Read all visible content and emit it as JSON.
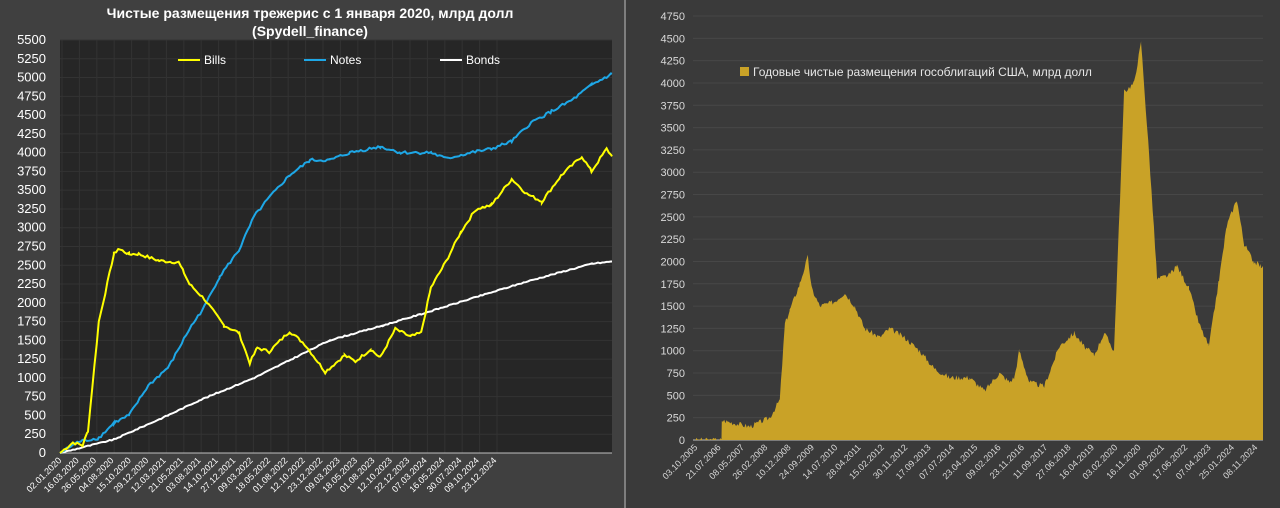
{
  "chart_data": [
    {
      "type": "line",
      "title": "Чистые размещения трежерис с 1 января 2020, млрд долл",
      "subtitle": "(Spydell_finance)",
      "xlabel": "",
      "ylabel": "",
      "ylim": [
        0,
        5500
      ],
      "yticks": [
        0,
        250,
        500,
        750,
        1000,
        1250,
        1500,
        1750,
        2000,
        2250,
        2500,
        2750,
        3000,
        3250,
        3500,
        3750,
        4000,
        4250,
        4500,
        4750,
        5000,
        5250,
        5500
      ],
      "xlim": [
        2020.0,
        2025.12
      ],
      "xtick_labels": [
        "02.01.2020",
        "16.03.2020",
        "26.05.2020",
        "04.08.2020",
        "15.10.2020",
        "29.12.2020",
        "12.03.2021",
        "21.05.2021",
        "03.08.2021",
        "14.10.2021",
        "27.12.2021",
        "09.03.2022",
        "18.05.2022",
        "01.08.2022",
        "12.10.2022",
        "23.12.2022",
        "09.03.2023",
        "18.05.2023",
        "01.08.2023",
        "12.10.2023",
        "22.12.2023",
        "07.03.2024",
        "16.05.2024",
        "30.07.2024",
        "09.10.2024",
        "23.12.2024"
      ],
      "legend_position": "top",
      "grid": true,
      "series": [
        {
          "name": "Bills",
          "color": "#ffff00",
          "x": [
            2020.0,
            2020.12,
            2020.21,
            2020.26,
            2020.36,
            2020.5,
            2020.54,
            2020.64,
            2020.73,
            2020.92,
            2021.1,
            2021.15,
            2021.2,
            2021.34,
            2021.52,
            2021.66,
            2021.76,
            2021.83,
            2021.94,
            2022.13,
            2022.27,
            2022.46,
            2022.64,
            2022.74,
            2022.88,
            2022.97,
            2023.11,
            2023.25,
            2023.35,
            2023.44,
            2023.58,
            2023.72,
            2023.86,
            2024.0,
            2024.19,
            2024.33,
            2024.47,
            2024.65,
            2024.84,
            2024.93,
            2025.07,
            2025.12
          ],
          "y": [
            0,
            140,
            100,
            300,
            1750,
            2650,
            2720,
            2650,
            2650,
            2560,
            2540,
            2400,
            2250,
            2050,
            1700,
            1600,
            1200,
            1400,
            1350,
            1620,
            1450,
            1080,
            1300,
            1220,
            1380,
            1270,
            1650,
            1550,
            1600,
            2200,
            2550,
            2950,
            3250,
            3300,
            3650,
            3450,
            3350,
            3700,
            3950,
            3750,
            4050,
            3950
          ]
        },
        {
          "name": "Notes",
          "color": "#1ea7e6",
          "x": [
            2020.0,
            2020.17,
            2020.36,
            2020.5,
            2020.64,
            2020.82,
            2021.01,
            2021.2,
            2021.34,
            2021.48,
            2021.66,
            2021.8,
            2021.94,
            2022.13,
            2022.32,
            2022.5,
            2022.69,
            2022.97,
            2023.16,
            2023.44,
            2023.58,
            2023.81,
            2024.0,
            2024.19,
            2024.37,
            2024.56,
            2024.75,
            2024.93,
            2025.12
          ],
          "y": [
            0,
            150,
            200,
            400,
            500,
            900,
            1150,
            1650,
            1950,
            2350,
            2700,
            3150,
            3400,
            3700,
            3900,
            3900,
            4000,
            4080,
            4000,
            4000,
            3920,
            4000,
            4050,
            4150,
            4400,
            4550,
            4700,
            4900,
            5050
          ]
        },
        {
          "name": "Bonds",
          "color": "#ffffff",
          "x": [
            2020.0,
            2020.5,
            2021.0,
            2021.29,
            2021.8,
            2022.5,
            2023.0,
            2023.35,
            2023.8,
            2024.37,
            2024.93,
            2025.12
          ],
          "y": [
            0,
            180,
            500,
            700,
            1000,
            1500,
            1700,
            1850,
            2050,
            2300,
            2520,
            2550
          ]
        }
      ]
    },
    {
      "type": "area",
      "title": "",
      "xlabel": "",
      "ylabel": "",
      "ylim": [
        0,
        4750
      ],
      "yticks": [
        0,
        250,
        500,
        750,
        1000,
        1250,
        1500,
        1750,
        2000,
        2250,
        2500,
        2750,
        3000,
        3250,
        3500,
        3750,
        4000,
        4250,
        4500,
        4750
      ],
      "xlim": [
        2005.75,
        2024.92
      ],
      "xtick_labels": [
        "03.10.2005",
        "21.07.2006",
        "08.05.2007",
        "26.02.2008",
        "10.12.2008",
        "24.09.2009",
        "14.07.2010",
        "28.04.2011",
        "15.02.2012",
        "30.11.2012",
        "17.09.2013",
        "07.07.2014",
        "23.04.2015",
        "09.02.2016",
        "23.11.2016",
        "11.09.2017",
        "27.06.2018",
        "16.04.2019",
        "03.02.2020",
        "16.11.2020",
        "01.09.2021",
        "17.06.2022",
        "07.04.2023",
        "25.01.2024",
        "08.11.2024"
      ],
      "legend_position": "top-left",
      "grid": true,
      "series": [
        {
          "name": "Годовые чистые размещения гособлигаций США, млрд долл",
          "color": "#c9a227",
          "x": [
            2005.75,
            2006.71,
            2006.72,
            2007.66,
            2008.33,
            2008.67,
            2008.84,
            2009.0,
            2009.34,
            2009.61,
            2009.74,
            2010.01,
            2010.51,
            2010.85,
            2011.19,
            2011.52,
            2012.03,
            2012.36,
            2012.86,
            2013.37,
            2013.87,
            2014.37,
            2015.05,
            2015.55,
            2016.05,
            2016.39,
            2016.56,
            2016.72,
            2017.06,
            2017.56,
            2018.07,
            2018.57,
            2018.9,
            2019.24,
            2019.58,
            2019.91,
            2020.25,
            2020.58,
            2020.82,
            2021.09,
            2021.36,
            2021.76,
            2022.03,
            2022.43,
            2022.77,
            2023.1,
            2023.44,
            2023.7,
            2024.04,
            2024.28,
            2024.61,
            2024.85,
            2024.92
          ],
          "y": [
            0,
            0,
            220,
            150,
            250,
            450,
            1300,
            1450,
            1750,
            2050,
            1700,
            1500,
            1550,
            1650,
            1500,
            1250,
            1150,
            1250,
            1150,
            1000,
            800,
            700,
            700,
            550,
            750,
            650,
            700,
            1000,
            650,
            600,
            1050,
            1200,
            1050,
            950,
            1200,
            1000,
            3900,
            4000,
            4450,
            3200,
            1800,
            1850,
            1950,
            1700,
            1300,
            1050,
            1800,
            2400,
            2700,
            2200,
            2000,
            1950,
            1950
          ]
        }
      ]
    }
  ]
}
